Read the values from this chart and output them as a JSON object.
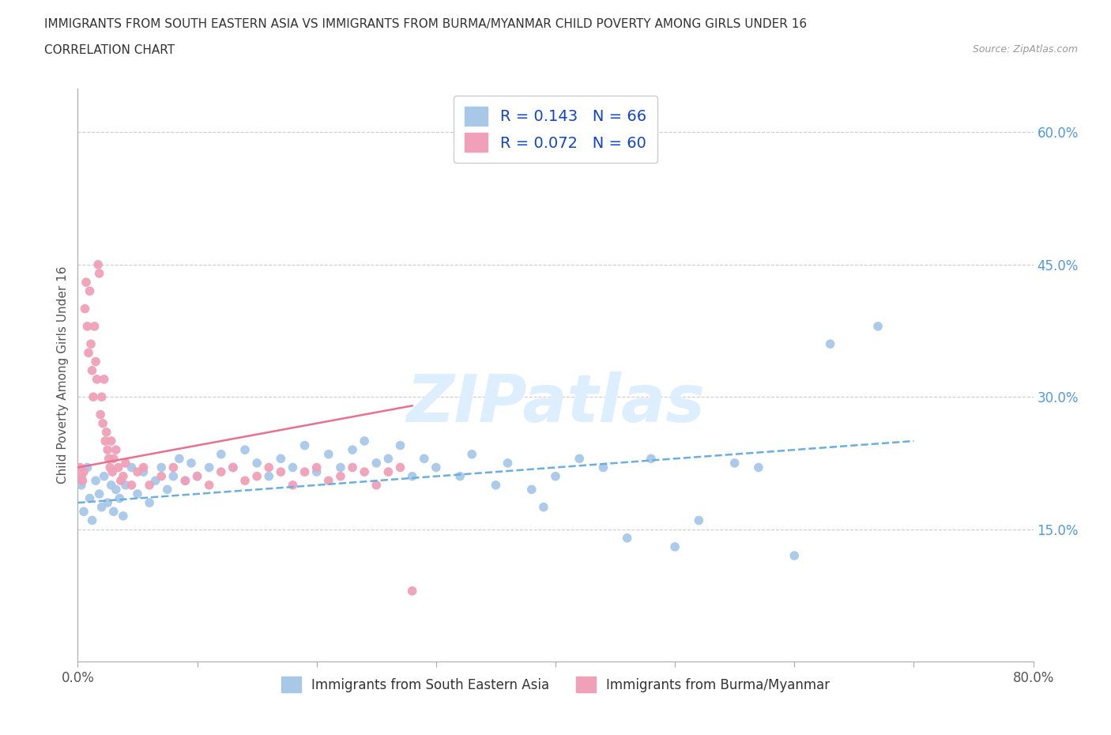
{
  "title_line1": "IMMIGRANTS FROM SOUTH EASTERN ASIA VS IMMIGRANTS FROM BURMA/MYANMAR CHILD POVERTY AMONG GIRLS UNDER 16",
  "title_line2": "CORRELATION CHART",
  "source_text": "Source: ZipAtlas.com",
  "ylabel": "Child Poverty Among Girls Under 16",
  "xlim": [
    0,
    80
  ],
  "ylim": [
    0,
    65
  ],
  "grid_color": "#cccccc",
  "background_color": "#ffffff",
  "blue_color": "#a8c8e8",
  "pink_color": "#f0a0b8",
  "blue_line_color": "#6aafdf",
  "pink_line_color": "#e87090",
  "watermark_color": "#ddeeff",
  "legend_label1": "R = 0.143   N = 66",
  "legend_label2": "R = 0.072   N = 60",
  "bottom_label1": "Immigrants from South Eastern Asia",
  "bottom_label2": "Immigrants from Burma/Myanmar",
  "blue_scatter_x": [
    0.3,
    0.5,
    0.8,
    1.0,
    1.2,
    1.5,
    1.8,
    2.0,
    2.2,
    2.5,
    2.8,
    3.0,
    3.2,
    3.5,
    3.8,
    4.0,
    4.5,
    5.0,
    5.5,
    6.0,
    6.5,
    7.0,
    7.5,
    8.0,
    8.5,
    9.0,
    9.5,
    10.0,
    11.0,
    12.0,
    13.0,
    14.0,
    15.0,
    16.0,
    17.0,
    18.0,
    19.0,
    20.0,
    21.0,
    22.0,
    23.0,
    24.0,
    25.0,
    26.0,
    27.0,
    28.0,
    29.0,
    30.0,
    32.0,
    33.0,
    35.0,
    36.0,
    38.0,
    39.0,
    40.0,
    42.0,
    44.0,
    46.0,
    48.0,
    50.0,
    52.0,
    55.0,
    57.0,
    60.0,
    63.0,
    67.0
  ],
  "blue_scatter_y": [
    20.0,
    17.0,
    22.0,
    18.5,
    16.0,
    20.5,
    19.0,
    17.5,
    21.0,
    18.0,
    20.0,
    17.0,
    19.5,
    18.5,
    16.5,
    20.0,
    22.0,
    19.0,
    21.5,
    18.0,
    20.5,
    22.0,
    19.5,
    21.0,
    23.0,
    20.5,
    22.5,
    21.0,
    22.0,
    23.5,
    22.0,
    24.0,
    22.5,
    21.0,
    23.0,
    22.0,
    24.5,
    21.5,
    23.5,
    22.0,
    24.0,
    25.0,
    22.5,
    23.0,
    24.5,
    21.0,
    23.0,
    22.0,
    21.0,
    23.5,
    20.0,
    22.5,
    19.5,
    17.5,
    21.0,
    23.0,
    22.0,
    14.0,
    23.0,
    13.0,
    16.0,
    22.5,
    22.0,
    12.0,
    36.0,
    38.0
  ],
  "pink_scatter_x": [
    0.2,
    0.3,
    0.4,
    0.5,
    0.6,
    0.7,
    0.8,
    0.9,
    1.0,
    1.1,
    1.2,
    1.3,
    1.4,
    1.5,
    1.6,
    1.7,
    1.8,
    1.9,
    2.0,
    2.1,
    2.2,
    2.3,
    2.4,
    2.5,
    2.6,
    2.7,
    2.8,
    2.9,
    3.0,
    3.2,
    3.4,
    3.6,
    3.8,
    4.0,
    4.5,
    5.0,
    5.5,
    6.0,
    7.0,
    8.0,
    9.0,
    10.0,
    11.0,
    12.0,
    13.0,
    14.0,
    15.0,
    16.0,
    17.0,
    18.0,
    19.0,
    20.0,
    21.0,
    22.0,
    23.0,
    24.0,
    25.0,
    26.0,
    27.0,
    28.0
  ],
  "pink_scatter_y": [
    22.0,
    21.0,
    20.5,
    21.5,
    40.0,
    43.0,
    38.0,
    35.0,
    42.0,
    36.0,
    33.0,
    30.0,
    38.0,
    34.0,
    32.0,
    45.0,
    44.0,
    28.0,
    30.0,
    27.0,
    32.0,
    25.0,
    26.0,
    24.0,
    23.0,
    22.0,
    25.0,
    21.5,
    23.0,
    24.0,
    22.0,
    20.5,
    21.0,
    22.5,
    20.0,
    21.5,
    22.0,
    20.0,
    21.0,
    22.0,
    20.5,
    21.0,
    20.0,
    21.5,
    22.0,
    20.5,
    21.0,
    22.0,
    21.5,
    20.0,
    21.5,
    22.0,
    20.5,
    21.0,
    22.0,
    21.5,
    20.0,
    21.5,
    22.0,
    8.0
  ]
}
